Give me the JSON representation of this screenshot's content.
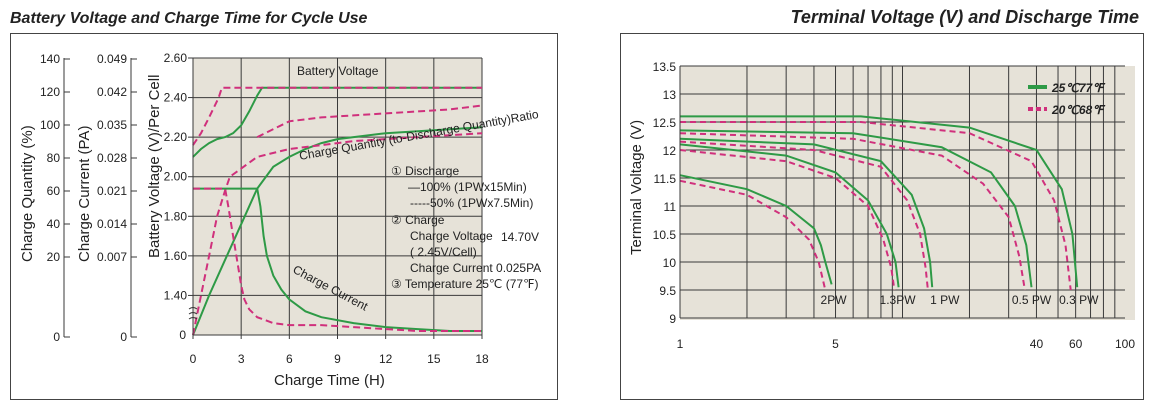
{
  "colors": {
    "green": "#2e9a46",
    "magenta": "#d0307c",
    "plot_bg": "#e6e2d8",
    "grid": "#3a3a3a"
  },
  "chart_data": [
    {
      "type": "line",
      "title": "Battery Voltage and Charge Time for Cycle Use",
      "xlabel": "Charge Time (H)",
      "ylabel": "Battery Voltage (V)/Per Cell",
      "xlim": [
        0,
        18
      ],
      "ylim": [
        1.2,
        2.6
      ],
      "xticks": [
        "0",
        "3",
        "6",
        "9",
        "12",
        "15",
        "18"
      ],
      "yticks": [
        "1.40",
        "1.60",
        "1.80",
        "2.00",
        "2.20",
        "2.40",
        "2.60"
      ],
      "extra_axes": [
        {
          "label": "Charge Quantity (%)",
          "ticks": [
            "0",
            "20",
            "40",
            "60",
            "80",
            "100",
            "120",
            "140"
          ]
        },
        {
          "label": "Charge Current (PA)",
          "ticks": [
            "0",
            "0.007",
            "0.014",
            "0.021",
            "0.028",
            "0.035",
            "0.042",
            "0.049"
          ]
        }
      ],
      "annotations": {
        "battery_voltage": "Battery Voltage",
        "charge_quantity": "Charge Quantity (to-Discharge Quantity)Ratio",
        "charge_current": "Charge Current",
        "notes": [
          "① Discharge",
          "—100% (1PWx15Min)",
          "-----50% (1PWx7.5Min)",
          "② Charge",
          "Charge Voltage",
          "14.70V",
          "( 2.45V/Cell)",
          "Charge Current 0.025PA",
          "③ Temperature 25℃ (77℉)"
        ]
      },
      "grid": true,
      "series": [
        {
          "curve": "voltage",
          "style": "solid",
          "x": [
            0,
            0.5,
            1,
            1.5,
            2,
            2.5,
            3,
            3.5,
            4,
            4.3,
            18
          ],
          "y": [
            2.1,
            2.14,
            2.17,
            2.19,
            2.2,
            2.22,
            2.26,
            2.33,
            2.41,
            2.45,
            2.45
          ]
        },
        {
          "curve": "voltage",
          "style": "dashed",
          "x": [
            0,
            0.5,
            1,
            1.6,
            1.8,
            4,
            6,
            8,
            10,
            12,
            14,
            16,
            18
          ],
          "y": [
            2.16,
            2.22,
            2.3,
            2.4,
            2.45,
            2.45,
            2.45,
            2.45,
            2.45,
            2.45,
            2.45,
            2.45,
            2.45
          ]
        },
        {
          "curve": "voltage-secondary",
          "style": "dashed",
          "x": [
            4,
            6,
            8,
            10,
            12,
            14,
            16,
            18
          ],
          "y": [
            2.2,
            2.28,
            2.3,
            2.31,
            2.32,
            2.33,
            2.34,
            2.36
          ]
        },
        {
          "curve": "quantity",
          "style": "solid",
          "x": [
            0,
            1,
            2,
            3,
            4,
            5,
            6,
            7,
            8,
            9,
            10,
            12,
            14,
            16,
            18
          ],
          "y": [
            1.2,
            1.4,
            1.58,
            1.76,
            1.94,
            2.05,
            2.1,
            2.14,
            2.17,
            2.19,
            2.2,
            2.22,
            2.23,
            2.24,
            2.25
          ]
        },
        {
          "curve": "quantity",
          "style": "dashed",
          "x": [
            0,
            0.5,
            1,
            1.5,
            2,
            2.3,
            4,
            6,
            8,
            10,
            12,
            14,
            16,
            18
          ],
          "y": [
            1.2,
            1.4,
            1.6,
            1.8,
            1.93,
            2.0,
            2.1,
            2.14,
            2.16,
            2.18,
            2.19,
            2.2,
            2.21,
            2.22
          ]
        },
        {
          "curve": "current",
          "style": "solid",
          "x": [
            0,
            4,
            4.2,
            4.4,
            4.6,
            5,
            5.5,
            6,
            7,
            8,
            10,
            12,
            14,
            16,
            18
          ],
          "y": [
            1.94,
            1.94,
            1.85,
            1.7,
            1.6,
            1.5,
            1.43,
            1.38,
            1.32,
            1.29,
            1.26,
            1.24,
            1.23,
            1.22,
            1.22
          ]
        },
        {
          "curve": "current",
          "style": "dashed",
          "x": [
            0,
            2,
            2.2,
            2.5,
            2.8,
            3,
            3.2,
            3.5,
            4,
            5,
            6,
            8,
            10,
            12,
            14,
            16,
            18
          ],
          "y": [
            1.94,
            1.94,
            1.85,
            1.7,
            1.55,
            1.45,
            1.38,
            1.33,
            1.29,
            1.26,
            1.25,
            1.25,
            1.24,
            1.23,
            1.22,
            1.22,
            1.22
          ]
        }
      ]
    },
    {
      "type": "line",
      "title": "Terminal Voltage (V) and Discharge Time",
      "ylabel": "Terminal Voltage (V)",
      "x_scale": "log",
      "xlim": [
        1,
        100
      ],
      "ylim": [
        9,
        13.5
      ],
      "xticks": [
        "1",
        "5",
        "40",
        "60",
        "100"
      ],
      "yticks": [
        "9",
        "9.5",
        "10",
        "10.5",
        "11",
        "11.5",
        "12",
        "12.5",
        "13",
        "13.5"
      ],
      "legend": {
        "position": "top-right",
        "items": [
          {
            "text": "25℃77℉",
            "style": "solid"
          },
          {
            "text": "20℃68℉",
            "style": "dashed"
          }
        ]
      },
      "curve_labels": [
        "2PW",
        "1.3PW",
        "1 PW",
        "0.5 PW",
        "0.3 PW"
      ],
      "grid": true,
      "series": [
        {
          "curve": "2PW",
          "style": "solid",
          "x": [
            1,
            2,
            3,
            4,
            4.3,
            4.5,
            4.8
          ],
          "y": [
            11.55,
            11.3,
            11.0,
            10.6,
            10.3,
            10.0,
            9.6
          ]
        },
        {
          "curve": "2PW",
          "style": "dashed",
          "x": [
            1,
            2,
            3,
            3.8,
            4.2,
            4.5
          ],
          "y": [
            11.45,
            11.2,
            10.8,
            10.4,
            10.0,
            9.5
          ]
        },
        {
          "curve": "1.3PW",
          "style": "solid",
          "x": [
            1,
            3,
            5,
            7,
            8.5,
            9.3,
            9.6
          ],
          "y": [
            12.1,
            11.9,
            11.6,
            11.1,
            10.5,
            10.0,
            9.55
          ]
        },
        {
          "curve": "1.3PW",
          "style": "dashed",
          "x": [
            1,
            3,
            5,
            7,
            8.2,
            8.9,
            9.2
          ],
          "y": [
            12.0,
            11.8,
            11.5,
            11.0,
            10.4,
            9.9,
            9.5
          ]
        },
        {
          "curve": "1 PW",
          "style": "solid",
          "x": [
            1,
            4,
            8,
            11,
            12.5,
            13.3,
            13.6
          ],
          "y": [
            12.2,
            12.1,
            11.8,
            11.2,
            10.6,
            10.0,
            9.55
          ]
        },
        {
          "curve": "1 PW",
          "style": "dashed",
          "x": [
            1,
            4,
            8,
            10.5,
            12,
            12.7,
            13
          ],
          "y": [
            12.15,
            12.0,
            11.7,
            11.1,
            10.5,
            9.9,
            9.5
          ]
        },
        {
          "curve": "0.5 PW",
          "style": "solid",
          "x": [
            1,
            6,
            15,
            25,
            32,
            36,
            38
          ],
          "y": [
            12.35,
            12.3,
            12.05,
            11.6,
            11.0,
            10.3,
            9.55
          ]
        },
        {
          "curve": "0.5 PW",
          "style": "dashed",
          "x": [
            1,
            6,
            15,
            23,
            30,
            33.5,
            35.5
          ],
          "y": [
            12.3,
            12.2,
            11.9,
            11.4,
            10.8,
            10.1,
            9.5
          ]
        },
        {
          "curve": "0.3 PW",
          "style": "solid",
          "x": [
            1,
            6.5,
            20,
            40,
            52,
            58,
            61
          ],
          "y": [
            12.6,
            12.6,
            12.4,
            12.0,
            11.3,
            10.5,
            9.55
          ]
        },
        {
          "curve": "0.3 PW",
          "style": "dashed",
          "x": [
            1,
            6.5,
            20,
            38,
            48,
            54,
            57
          ],
          "y": [
            12.5,
            12.5,
            12.3,
            11.8,
            11.1,
            10.3,
            9.5
          ]
        }
      ]
    }
  ]
}
